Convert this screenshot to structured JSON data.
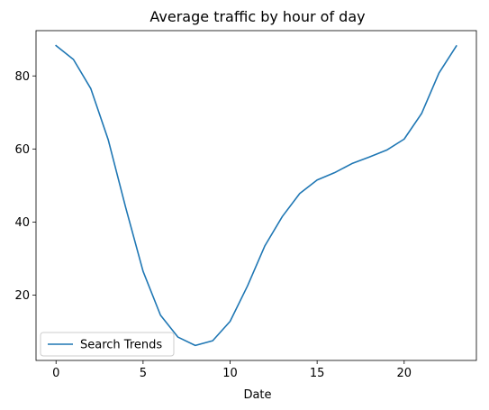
{
  "chart_data": {
    "type": "line",
    "title": "Average traffic by hour of day",
    "xlabel": "Date",
    "ylabel": "",
    "x": [
      0,
      1,
      2,
      3,
      4,
      5,
      6,
      7,
      8,
      9,
      10,
      11,
      12,
      13,
      14,
      15,
      16,
      17,
      18,
      19,
      20,
      21,
      22,
      23
    ],
    "series": [
      {
        "name": "Search Trends",
        "color": "#1f77b4",
        "values": [
          88.3,
          84.5,
          76.5,
          62.5,
          44.0,
          26.5,
          14.5,
          8.5,
          6.2,
          7.5,
          12.8,
          22.5,
          33.5,
          41.5,
          47.8,
          51.5,
          53.5,
          56.0,
          57.8,
          59.7,
          62.7,
          69.7,
          80.8,
          88.2
        ]
      }
    ],
    "xlim": [
      -1.15,
      24.15
    ],
    "ylim": [
      2.1,
      92.4
    ],
    "xticks": [
      0,
      5,
      10,
      15,
      20
    ],
    "yticks": [
      20,
      40,
      60,
      80
    ],
    "legend_position": "lower left",
    "grid": false
  }
}
